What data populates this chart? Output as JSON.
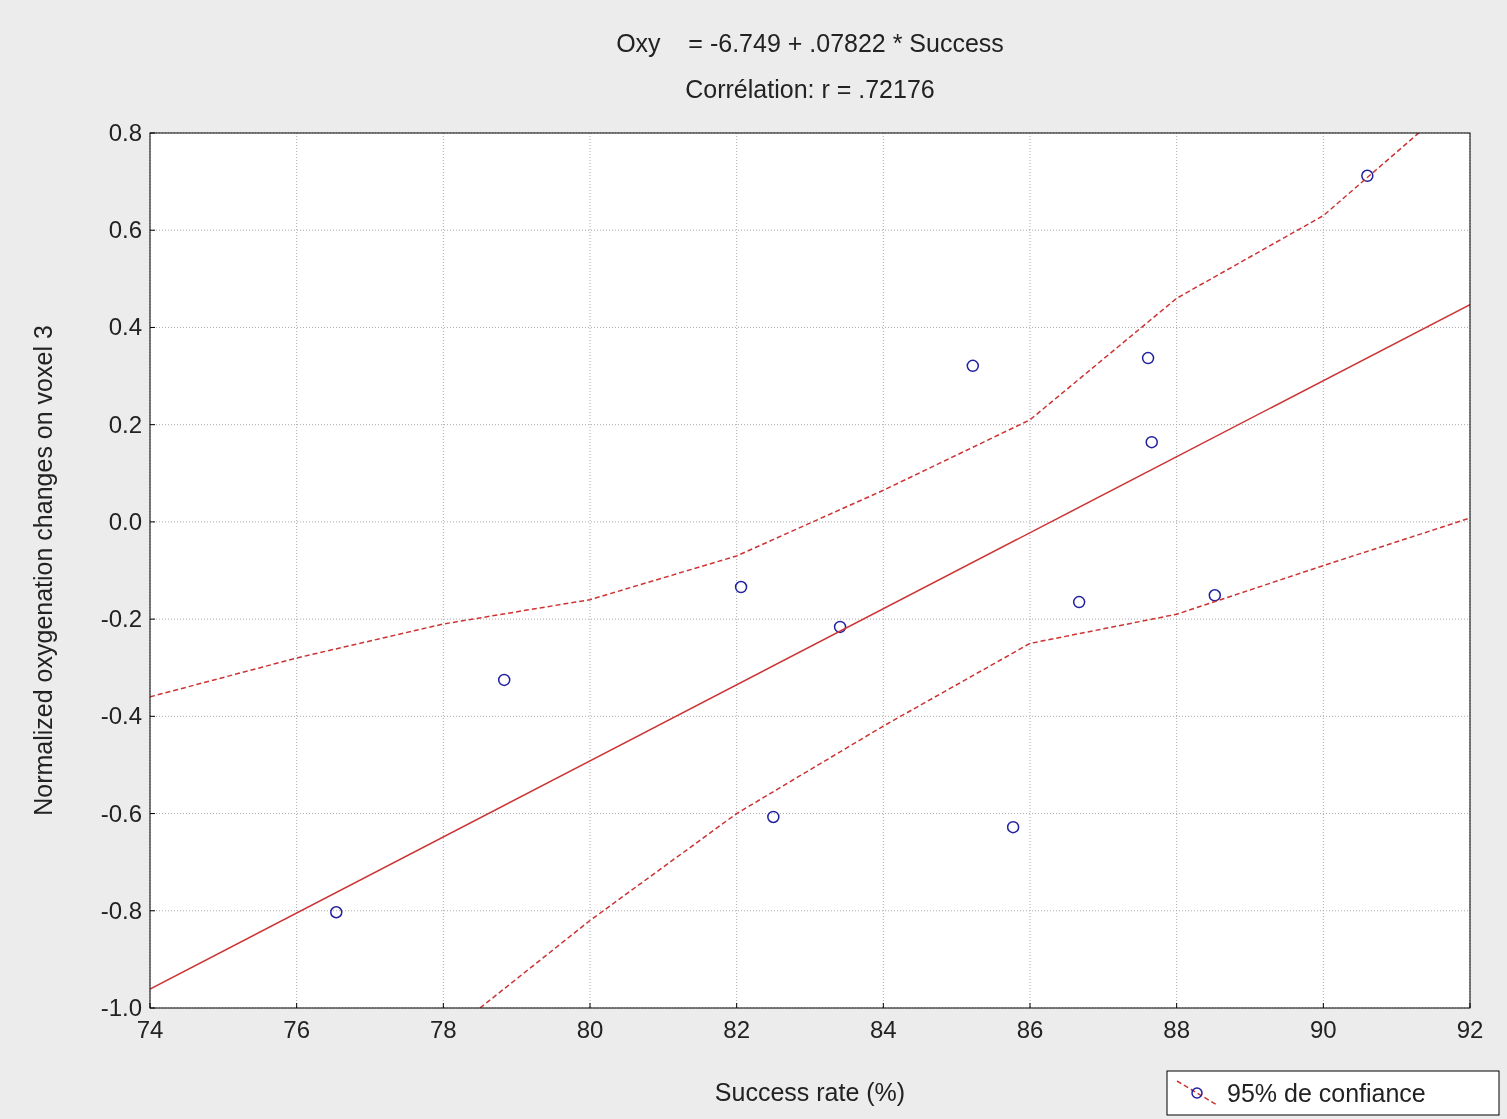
{
  "chart_data": {
    "type": "scatter",
    "title": "Oxy    = -6.749 + .07822 * Success",
    "subtitle": "Corrélation: r = .72176",
    "xlabel": "Success rate (%)",
    "ylabel": "Normalized oxygenation changes on voxel 3",
    "xlim": [
      74,
      92
    ],
    "xticks": [
      74,
      76,
      78,
      80,
      82,
      84,
      86,
      88,
      90,
      92
    ],
    "ylim": [
      -1.0,
      0.8
    ],
    "yticks": [
      {
        "value": -1,
        "label": "-1.0"
      },
      {
        "value": -0.8,
        "label": "-0.8"
      },
      {
        "value": -0.6,
        "label": "-0.6"
      },
      {
        "value": -0.4,
        "label": "-0.4"
      },
      {
        "value": -0.2,
        "label": "-0.2"
      },
      {
        "value": 0,
        "label": "0.0"
      },
      {
        "value": 0.2,
        "label": "0.2"
      },
      {
        "value": 0.4,
        "label": "0.4"
      },
      {
        "value": 0.6,
        "label": "0.6"
      },
      {
        "value": 0.8,
        "label": "0.8"
      }
    ],
    "grid": true,
    "legend": "bottom right",
    "series": [
      {
        "marker": "circle",
        "color": "#2020a0",
        "x": [
          76.54,
          78.83,
          82.06,
          82.5,
          83.41,
          85.22,
          85.77,
          86.67,
          87.61,
          87.66,
          88.52,
          90.6
        ],
        "values": [
          -0.803,
          -0.325,
          -0.134,
          -0.607,
          -0.216,
          0.321,
          -0.628,
          -0.165,
          0.337,
          0.164,
          -0.151,
          0.712
        ]
      },
      {
        "type": "line",
        "marker": "none",
        "color": "#cc3333",
        "line_style": "solid",
        "x": [
          74,
          92
        ],
        "values": [
          -0.961,
          0.447
        ]
      },
      {
        "type": "line",
        "marker": "none",
        "name": "95% de confiance",
        "color": "#cc3333",
        "line_style": "dashed",
        "x": [
          74,
          76,
          78,
          80,
          82,
          84,
          86,
          88,
          90,
          91.3
        ],
        "values": [
          -0.36,
          -0.28,
          -0.21,
          -0.16,
          -0.07,
          0.065,
          0.21,
          0.46,
          0.63,
          0.8
        ]
      },
      {
        "type": "line",
        "marker": "none",
        "color": "#cc3333",
        "line_style": "dashed",
        "x": [
          78.5,
          80,
          82,
          84,
          86,
          88,
          90,
          92
        ],
        "values": [
          -1.0,
          -0.82,
          -0.6,
          -0.42,
          -0.25,
          -0.19,
          -0.09,
          0.008
        ]
      }
    ]
  }
}
